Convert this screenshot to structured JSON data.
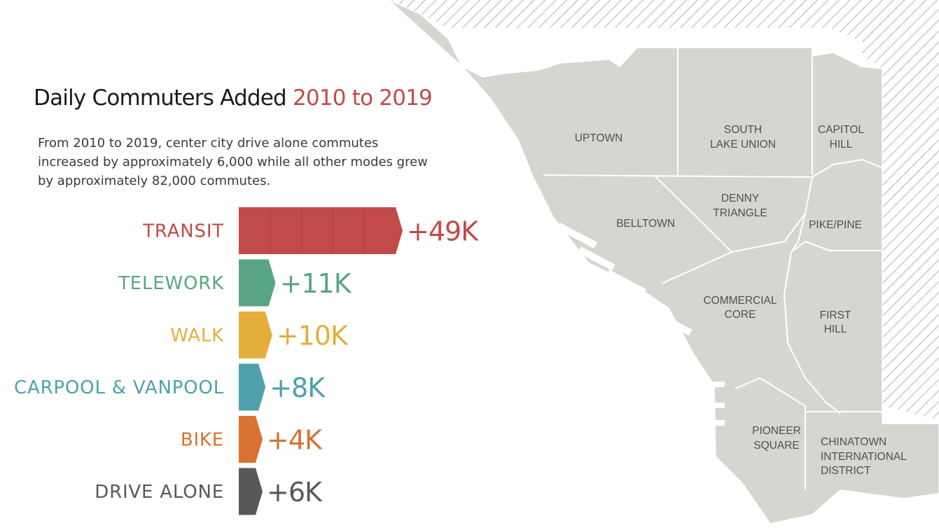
{
  "title": {
    "main": "Daily Commuters Added",
    "accent": "2010 to 2019"
  },
  "subtitle": "From 2010 to 2019, center city drive alone commutes increased by approximately 6,000 while all other modes grew by approximately 82,000 commutes.",
  "colors": {
    "accent": "#c14a4a",
    "map_fill": "#d6d5d0",
    "map_border": "#ffffff",
    "hatch": "#8a8a8a"
  },
  "map": {
    "neighborhoods": [
      {
        "id": "uptown",
        "lines": [
          "UPTOWN"
        ]
      },
      {
        "id": "south-lake-union",
        "lines": [
          "SOUTH",
          "LAKE UNION"
        ]
      },
      {
        "id": "capitol-hill",
        "lines": [
          "CAPITOL",
          "HILL"
        ]
      },
      {
        "id": "belltown",
        "lines": [
          "BELLTOWN"
        ]
      },
      {
        "id": "denny-triangle",
        "lines": [
          "DENNY",
          "TRIANGLE"
        ]
      },
      {
        "id": "pike-pine",
        "lines": [
          "PIKE/PINE"
        ]
      },
      {
        "id": "commercial-core",
        "lines": [
          "COMMERCIAL",
          "CORE"
        ]
      },
      {
        "id": "first-hill",
        "lines": [
          "FIRST",
          "HILL"
        ]
      },
      {
        "id": "pioneer-square",
        "lines": [
          "PIONEER",
          "SQUARE"
        ]
      },
      {
        "id": "chinatown-international-district",
        "lines": [
          "CHINATOWN",
          "INTERNATIONAL",
          "DISTRICT"
        ]
      }
    ]
  },
  "chart_data": {
    "type": "bar",
    "orientation": "horizontal",
    "title": "Daily Commuters Added 2010 to 2019",
    "categories": [
      "TRANSIT",
      "TELEWORK",
      "WALK",
      "CARPOOL & VANPOOL",
      "BIKE",
      "DRIVE ALONE"
    ],
    "values": [
      49000,
      11000,
      10000,
      8000,
      4000,
      6000
    ],
    "value_labels": [
      "+49K",
      "+11K",
      "+10K",
      "+8K",
      "+4K",
      "+6K"
    ],
    "colors": [
      "#c14a4a",
      "#5aa584",
      "#e5ae3a",
      "#4ea0ae",
      "#d87132",
      "#58585a"
    ],
    "xlim": [
      0,
      49000
    ],
    "grid": false,
    "legend": "none"
  }
}
